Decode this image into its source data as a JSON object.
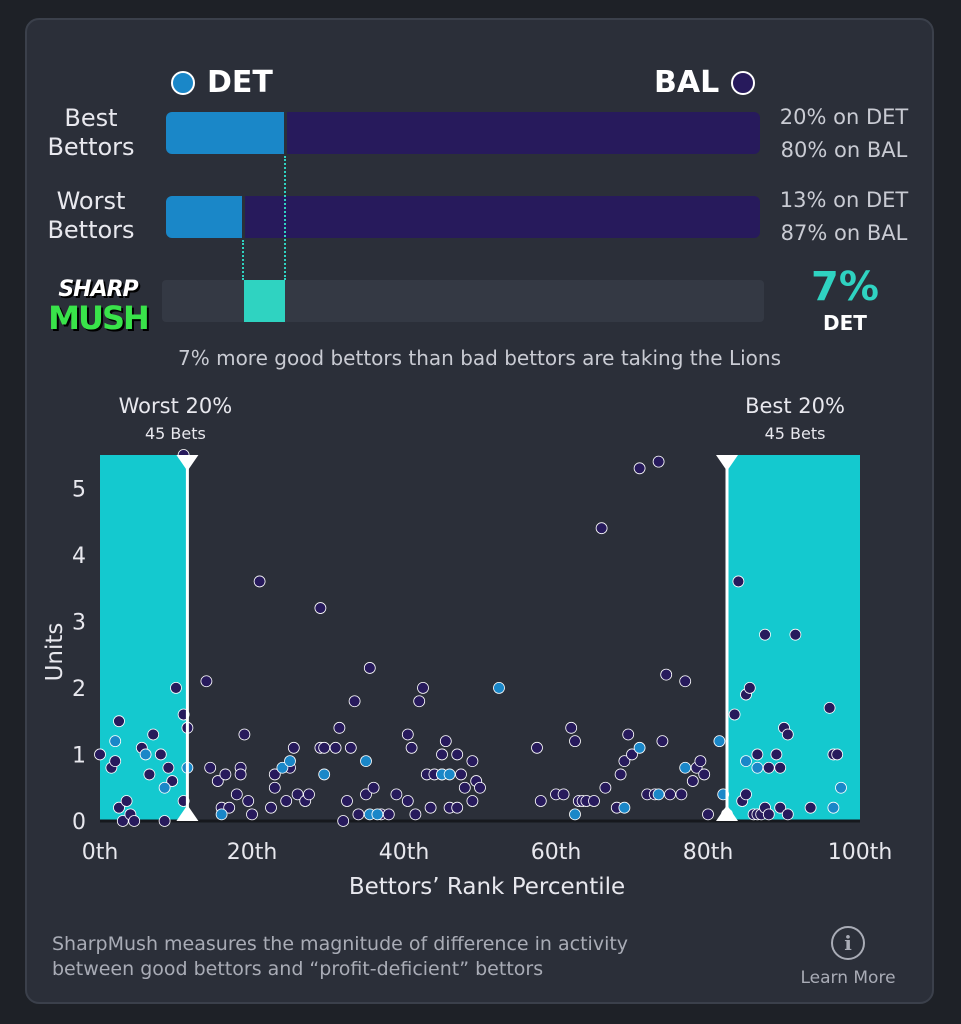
{
  "teams": {
    "left": {
      "abbr": "DET",
      "color": "#1a87c8"
    },
    "right": {
      "abbr": "BAL",
      "color": "#271a5c"
    }
  },
  "best": {
    "label_line1": "Best",
    "label_line2": "Bettors",
    "left_pct": 20,
    "right_pct": 80,
    "left_text": "20% on DET",
    "right_text": "80% on BAL"
  },
  "worst": {
    "label_line1": "Worst",
    "label_line2": "Bettors",
    "left_pct": 13,
    "right_pct": 87,
    "left_text": "13% on DET",
    "right_text": "87% on BAL"
  },
  "sharpmush": {
    "logo_line1": "SHARP",
    "logo_line2": "MUSH",
    "value_text": "7%",
    "team": "DET",
    "accent": "#2fd3c1",
    "diff_start_pct": 13,
    "diff_end_pct": 20
  },
  "summary": "7% more good bettors than bad bettors are taking the Lions",
  "chart_data": {
    "type": "scatter",
    "xlabel": "Bettors’ Rank Percentile",
    "ylabel": "Units",
    "xlim": [
      0,
      100
    ],
    "ylim": [
      0,
      5.5
    ],
    "x_ticks": [
      0,
      20,
      40,
      60,
      80,
      100
    ],
    "x_tick_labels": [
      "0th",
      "20th",
      "40th",
      "60th",
      "80th",
      "100th"
    ],
    "y_ticks": [
      0,
      1,
      2,
      3,
      4,
      5
    ],
    "y_tick_labels": [
      "0",
      "1",
      "2",
      "3",
      "4",
      "5"
    ],
    "highlight_regions": [
      {
        "name": "worst",
        "x_range": [
          0,
          11.5
        ],
        "title": "Worst 20%",
        "subtitle": "45 Bets"
      },
      {
        "name": "best",
        "x_range": [
          82.5,
          100
        ],
        "title": "Best 20%",
        "subtitle": "45 Bets"
      }
    ],
    "series": [
      {
        "name": "BAL",
        "color": "#271a5c",
        "points": [
          [
            0,
            1
          ],
          [
            1.5,
            0.8
          ],
          [
            2,
            0.9
          ],
          [
            2.5,
            1.5
          ],
          [
            2.5,
            0.2
          ],
          [
            3,
            0
          ],
          [
            3.5,
            0.3
          ],
          [
            4,
            0.1
          ],
          [
            4.5,
            0
          ],
          [
            5.5,
            1.1
          ],
          [
            6.5,
            0.7
          ],
          [
            7,
            1.3
          ],
          [
            8,
            1
          ],
          [
            8.5,
            0
          ],
          [
            9,
            0.8
          ],
          [
            9.5,
            0.6
          ],
          [
            10,
            2
          ],
          [
            11,
            1.6
          ],
          [
            11,
            0.3
          ],
          [
            11.5,
            1.4
          ],
          [
            11,
            5.5
          ],
          [
            14,
            2.1
          ],
          [
            14.5,
            0.8
          ],
          [
            15.5,
            0.6
          ],
          [
            16,
            0.2
          ],
          [
            16.5,
            0.7
          ],
          [
            17,
            0.2
          ],
          [
            18,
            0.4
          ],
          [
            18.5,
            0.8
          ],
          [
            18.5,
            0.7
          ],
          [
            19,
            1.3
          ],
          [
            19.5,
            0.3
          ],
          [
            20,
            0.1
          ],
          [
            21,
            3.6
          ],
          [
            22.5,
            0.2
          ],
          [
            23,
            0.5
          ],
          [
            23,
            0.7
          ],
          [
            24.5,
            0.3
          ],
          [
            25,
            0.8
          ],
          [
            25.5,
            1.1
          ],
          [
            26,
            0.4
          ],
          [
            27,
            0.3
          ],
          [
            27.5,
            0.4
          ],
          [
            29,
            1.1
          ],
          [
            29,
            3.2
          ],
          [
            29.5,
            1.1
          ],
          [
            31,
            1.1
          ],
          [
            31.5,
            1.4
          ],
          [
            32,
            0
          ],
          [
            32.5,
            0.3
          ],
          [
            33,
            1.1
          ],
          [
            33.5,
            1.8
          ],
          [
            34,
            0.1
          ],
          [
            35,
            0.4
          ],
          [
            35.5,
            2.3
          ],
          [
            36,
            0.5
          ],
          [
            37,
            0.1
          ],
          [
            38,
            0.1
          ],
          [
            39,
            0.4
          ],
          [
            40.5,
            1.3
          ],
          [
            40.5,
            0.3
          ],
          [
            41,
            1.1
          ],
          [
            41.5,
            0.1
          ],
          [
            42,
            1.8
          ],
          [
            42.5,
            2
          ],
          [
            43,
            0.7
          ],
          [
            43.5,
            0.2
          ],
          [
            44,
            0.7
          ],
          [
            45,
            1
          ],
          [
            45,
            0.7
          ],
          [
            45.5,
            1.2
          ],
          [
            46,
            0.2
          ],
          [
            47,
            1
          ],
          [
            47,
            0.2
          ],
          [
            47.5,
            0.7
          ],
          [
            48,
            0.5
          ],
          [
            49,
            0.9
          ],
          [
            49,
            0.3
          ],
          [
            49.5,
            0.6
          ],
          [
            50,
            0.5
          ],
          [
            57.5,
            1.1
          ],
          [
            58,
            0.3
          ],
          [
            60,
            0.4
          ],
          [
            61,
            0.4
          ],
          [
            62,
            1.4
          ],
          [
            62.5,
            1.2
          ],
          [
            63,
            0.3
          ],
          [
            63.5,
            0.3
          ],
          [
            64,
            0.3
          ],
          [
            65,
            0.3
          ],
          [
            66,
            4.4
          ],
          [
            66.5,
            0.5
          ],
          [
            68,
            0.2
          ],
          [
            68.5,
            0.7
          ],
          [
            69,
            0.9
          ],
          [
            69.5,
            1.3
          ],
          [
            70,
            1
          ],
          [
            71,
            5.3
          ],
          [
            72,
            0.4
          ],
          [
            73,
            0.4
          ],
          [
            73.5,
            5.4
          ],
          [
            74,
            1.2
          ],
          [
            74.5,
            2.2
          ],
          [
            75,
            0.4
          ],
          [
            76.5,
            0.4
          ],
          [
            77,
            2.1
          ],
          [
            78,
            0.6
          ],
          [
            78.5,
            0.8
          ],
          [
            79,
            0.9
          ],
          [
            79.5,
            0.7
          ],
          [
            80,
            0.1
          ],
          [
            83.5,
            1.6
          ],
          [
            84,
            3.6
          ],
          [
            84.5,
            0.3
          ],
          [
            85,
            0.4
          ],
          [
            85,
            1.9
          ],
          [
            85.5,
            2
          ],
          [
            86,
            0.1
          ],
          [
            86.5,
            1
          ],
          [
            86.5,
            0.1
          ],
          [
            87,
            0.1
          ],
          [
            87.5,
            0.2
          ],
          [
            87.5,
            2.8
          ],
          [
            88,
            0.8
          ],
          [
            88,
            0.1
          ],
          [
            89,
            1
          ],
          [
            89.5,
            0.8
          ],
          [
            89.5,
            0.2
          ],
          [
            90,
            1.4
          ],
          [
            90.5,
            1.3
          ],
          [
            90.5,
            0.1
          ],
          [
            91.5,
            2.8
          ],
          [
            93.5,
            0.2
          ],
          [
            96,
            1.7
          ],
          [
            96.5,
            1
          ],
          [
            97,
            1
          ]
        ]
      },
      {
        "name": "DET",
        "color": "#1a87c8",
        "points": [
          [
            2,
            1.2
          ],
          [
            6,
            1
          ],
          [
            8.5,
            0.5
          ],
          [
            11.5,
            0.8
          ],
          [
            16,
            0.1
          ],
          [
            24,
            0.8
          ],
          [
            25,
            0.9
          ],
          [
            29.5,
            0.7
          ],
          [
            35,
            0.9
          ],
          [
            35.5,
            0.1
          ],
          [
            36.5,
            0.1
          ],
          [
            45,
            0.7
          ],
          [
            46,
            0.7
          ],
          [
            52.5,
            2
          ],
          [
            62.5,
            0.1
          ],
          [
            69,
            0.2
          ],
          [
            71,
            1.1
          ],
          [
            73.5,
            0.4
          ],
          [
            77,
            0.8
          ],
          [
            81.5,
            1.2
          ],
          [
            82,
            0.4
          ],
          [
            82.5,
            0.1
          ],
          [
            85,
            0.9
          ],
          [
            86.5,
            0.8
          ],
          [
            96.5,
            0.2
          ],
          [
            97.5,
            0.5
          ]
        ]
      }
    ]
  },
  "footer": {
    "line1": "SharpMush measures the magnitude of difference in activity",
    "line2": "between good bettors and “profit-deficient” bettors",
    "learn_more": "Learn More"
  }
}
